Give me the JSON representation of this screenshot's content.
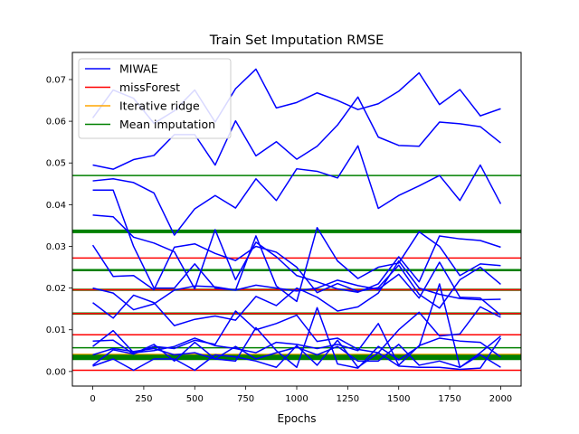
{
  "chart_data": {
    "type": "line",
    "title": "Train Set Imputation RMSE",
    "xlabel": "Epochs",
    "ylabel": "",
    "xlim": [
      -100,
      2100
    ],
    "ylim": [
      -0.0035,
      0.0765
    ],
    "xticks": [
      0,
      250,
      500,
      750,
      1000,
      1250,
      1500,
      1750,
      2000
    ],
    "xtick_labels": [
      "0",
      "250",
      "500",
      "750",
      "1000",
      "1250",
      "1500",
      "1750",
      "2000"
    ],
    "yticks": [
      0.0,
      0.01,
      0.02,
      0.03,
      0.04,
      0.05,
      0.06,
      0.07
    ],
    "ytick_labels": [
      "0.00",
      "0.01",
      "0.02",
      "0.03",
      "0.04",
      "0.05",
      "0.06",
      "0.07"
    ],
    "grid": false,
    "legend": {
      "position": "top-left",
      "entries": [
        {
          "label": "MIWAE",
          "color": "#0000ff"
        },
        {
          "label": "missForest",
          "color": "#ff0000"
        },
        {
          "label": "Iterative ridge",
          "color": "#ffa500"
        },
        {
          "label": "Mean imputation",
          "color": "#008000"
        }
      ]
    },
    "x": [
      0,
      100,
      200,
      300,
      400,
      500,
      600,
      700,
      800,
      900,
      1000,
      1100,
      1200,
      1300,
      1400,
      1500,
      1600,
      1700,
      1800,
      1900,
      2000
    ],
    "series": [
      {
        "method": "MIWAE",
        "color": "#0000ff",
        "values": [
          0.0608,
          0.0675,
          0.0655,
          0.0595,
          0.0625,
          0.0675,
          0.0598,
          0.0678,
          0.0725,
          0.0632,
          0.0645,
          0.0668,
          0.065,
          0.0628,
          0.0642,
          0.0672,
          0.0716,
          0.064,
          0.0676,
          0.0613,
          0.063
        ]
      },
      {
        "method": "MIWAE",
        "color": "#0000ff",
        "values": [
          0.0495,
          0.0485,
          0.0508,
          0.0518,
          0.0568,
          0.0568,
          0.0495,
          0.0601,
          0.0517,
          0.0551,
          0.0509,
          0.054,
          0.0591,
          0.0658,
          0.0562,
          0.0542,
          0.054,
          0.0598,
          0.0594,
          0.0587,
          0.0548
        ]
      },
      {
        "method": "MIWAE",
        "color": "#0000ff",
        "values": [
          0.0457,
          0.0462,
          0.0453,
          0.0428,
          0.0327,
          0.039,
          0.0422,
          0.0392,
          0.0462,
          0.041,
          0.0486,
          0.048,
          0.0464,
          0.0541,
          0.0391,
          0.0422,
          0.0445,
          0.047,
          0.041,
          0.0495,
          0.0402
        ]
      },
      {
        "method": "MIWAE",
        "color": "#0000ff",
        "values": [
          0.0435,
          0.0435,
          0.03,
          0.02,
          0.02,
          0.0258,
          0.02,
          0.0195,
          0.0325,
          0.0205,
          0.0168,
          0.0345,
          0.0265,
          0.0223,
          0.025,
          0.026,
          0.0335,
          0.03,
          0.023,
          0.0258,
          0.0254
        ]
      },
      {
        "method": "MIWAE",
        "color": "#0000ff",
        "values": [
          0.0375,
          0.0371,
          0.0322,
          0.0308,
          0.0287,
          0.0198,
          0.034,
          0.022,
          0.031,
          0.0275,
          0.023,
          0.0215,
          0.0198,
          0.019,
          0.021,
          0.0275,
          0.0215,
          0.0325,
          0.0318,
          0.0314,
          0.0298
        ]
      },
      {
        "method": "MIWAE",
        "color": "#0000ff",
        "values": [
          0.0303,
          0.0228,
          0.023,
          0.0196,
          0.0298,
          0.0306,
          0.0283,
          0.0266,
          0.03,
          0.0286,
          0.025,
          0.0189,
          0.0211,
          0.0192,
          0.0201,
          0.0255,
          0.0185,
          0.0152,
          0.022,
          0.025,
          0.0209
        ]
      },
      {
        "method": "MIWAE",
        "color": "#0000ff",
        "values": [
          0.02,
          0.0188,
          0.0148,
          0.0162,
          0.0195,
          0.0205,
          0.0203,
          0.0195,
          0.0207,
          0.02,
          0.0193,
          0.02,
          0.0219,
          0.0206,
          0.0197,
          0.0233,
          0.0176,
          0.0262,
          0.0178,
          0.0176,
          0.0135
        ]
      },
      {
        "method": "MIWAE",
        "color": "#0000ff",
        "values": [
          0.0165,
          0.0128,
          0.0183,
          0.0165,
          0.011,
          0.0125,
          0.0133,
          0.0123,
          0.018,
          0.0158,
          0.02,
          0.0178,
          0.0145,
          0.0155,
          0.0188,
          0.0265,
          0.02,
          0.0185,
          0.0175,
          0.0172,
          0.0173
        ]
      },
      {
        "method": "MIWAE",
        "color": "#0000ff",
        "values": [
          0.0073,
          0.0075,
          0.0042,
          0.006,
          0.0055,
          0.0075,
          0.0065,
          0.0145,
          0.01,
          0.0115,
          0.0135,
          0.0072,
          0.008,
          0.0053,
          0.0045,
          0.01,
          0.0142,
          0.0085,
          0.009,
          0.0155,
          0.013
        ]
      },
      {
        "method": "MIWAE",
        "color": "#0000ff",
        "values": [
          0.006,
          0.0098,
          0.0045,
          0.005,
          0.006,
          0.008,
          0.0062,
          0.0055,
          0.0045,
          0.007,
          0.0065,
          0.0055,
          0.0065,
          0.005,
          0.0115,
          0.0015,
          0.0062,
          0.008,
          0.0073,
          0.007,
          0.0035
        ]
      },
      {
        "method": "MIWAE",
        "color": "#0000ff",
        "values": [
          0.004,
          0.0055,
          0.0048,
          0.0055,
          0.004,
          0.0045,
          0.003,
          0.0025,
          0.0105,
          0.005,
          0.001,
          0.0153,
          0.0018,
          0.0008,
          0.006,
          0.0028,
          0.006,
          0.021,
          0.001,
          0.0045,
          0.0085
        ]
      },
      {
        "method": "MIWAE",
        "color": "#0000ff",
        "values": [
          0.0013,
          0.003,
          0.0003,
          0.003,
          0.003,
          0.0003,
          0.004,
          0.0035,
          0.0025,
          0.001,
          0.0062,
          0.0015,
          0.0075,
          0.001,
          0.0045,
          0.0013,
          0.001,
          0.001,
          0.0005,
          0.0008,
          0.008
        ]
      },
      {
        "method": "MIWAE",
        "color": "#0000ff",
        "values": [
          0.0015,
          0.0052,
          0.0042,
          0.0065,
          0.0025,
          0.007,
          0.003,
          0.006,
          0.003,
          0.0045,
          0.0058,
          0.004,
          0.006,
          0.0025,
          0.0025,
          0.0065,
          0.0015,
          0.0025,
          0.001,
          0.004,
          0.001
        ]
      }
    ],
    "hlines": [
      {
        "method": "Mean imputation",
        "color": "#008000",
        "y": 0.047,
        "weight": "thin"
      },
      {
        "method": "Mean imputation",
        "color": "#008000",
        "y": 0.0336,
        "weight": "thick"
      },
      {
        "method": "missForest",
        "color": "#ff0000",
        "y": 0.0272,
        "weight": "thin"
      },
      {
        "method": "Mean imputation",
        "color": "#008000",
        "y": 0.0243,
        "weight": "medium"
      },
      {
        "method": "Mean imputation",
        "color": "#008000",
        "y": 0.0196,
        "weight": "medium"
      },
      {
        "method": "missForest",
        "color": "#ff0000",
        "y": 0.0196,
        "weight": "thin"
      },
      {
        "method": "Mean imputation",
        "color": "#008000",
        "y": 0.0139,
        "weight": "medium"
      },
      {
        "method": "missForest",
        "color": "#ff0000",
        "y": 0.0139,
        "weight": "thin"
      },
      {
        "method": "missForest",
        "color": "#ff0000",
        "y": 0.0088,
        "weight": "thin"
      },
      {
        "method": "Mean imputation",
        "color": "#008000",
        "y": 0.0057,
        "weight": "thin"
      },
      {
        "method": "Iterative ridge",
        "color": "#ffa500",
        "y": 0.004,
        "weight": "medium"
      },
      {
        "method": "Mean imputation",
        "color": "#008000",
        "y": 0.0036,
        "weight": "thick"
      },
      {
        "method": "Iterative ridge",
        "color": "#ffa500",
        "y": 0.003,
        "weight": "thin"
      },
      {
        "method": "Mean imputation",
        "color": "#008000",
        "y": 0.003,
        "weight": "medium"
      },
      {
        "method": "missForest",
        "color": "#ff0000",
        "y": 0.0003,
        "weight": "thin"
      }
    ]
  }
}
